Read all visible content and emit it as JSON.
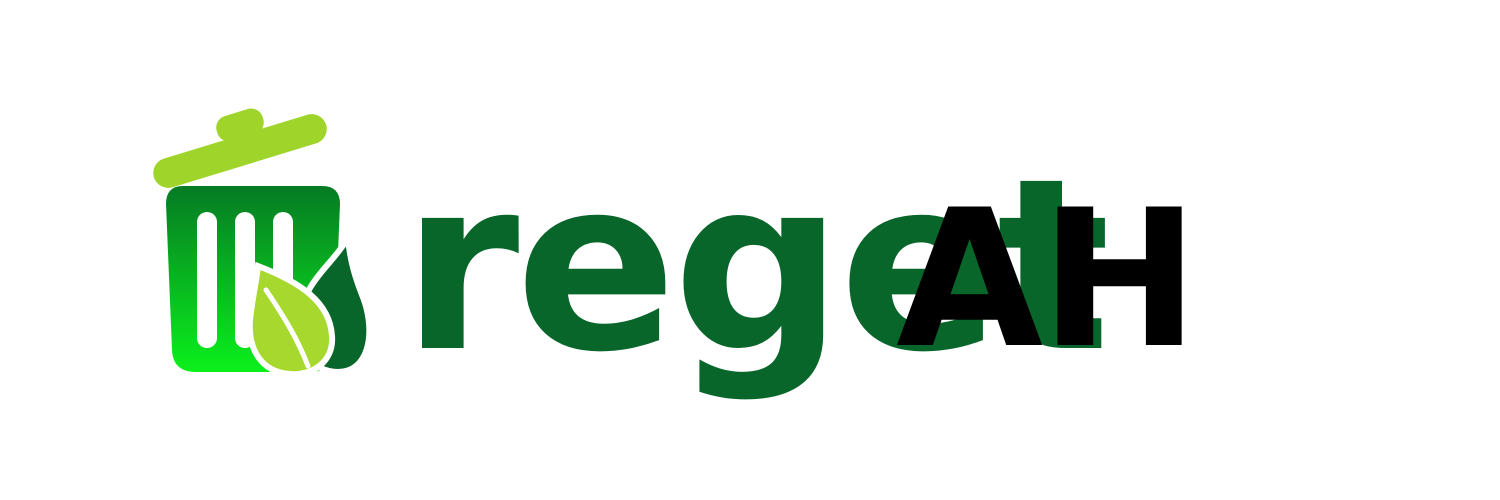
{
  "brand": {
    "name_primary": "reget",
    "name_secondary": "AH",
    "icon": "recycle-bin-leaf-icon"
  },
  "colors": {
    "primary_green": "#08662b",
    "lid_green": "#9fd52a",
    "bin_top_green": "#067a24",
    "bin_bottom_green": "#0bf01c",
    "leaf_green": "#a6d82d",
    "text_black": "#000000",
    "background": "#ffffff"
  }
}
